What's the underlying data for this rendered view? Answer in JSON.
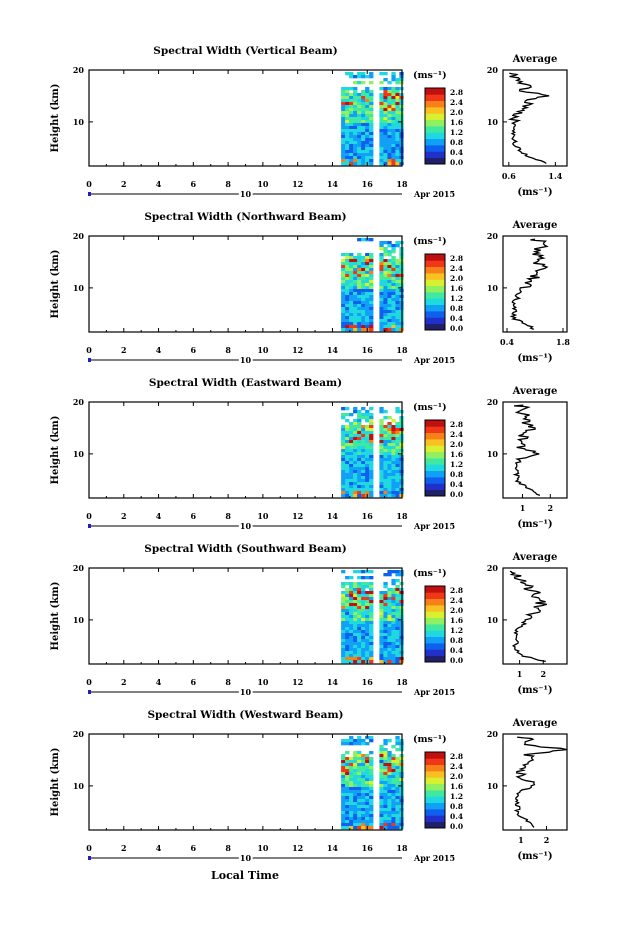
{
  "figure": {
    "xlabel": "Local Time",
    "date_label": "Apr 2015",
    "day_label": "10",
    "colorbar_unit": "(ms⁻¹)",
    "avg_title": "Average",
    "avg_unit": "(ms⁻¹)"
  },
  "chart_data": [
    {
      "type": "heatmap",
      "title": "Spectral Width (Vertical Beam)",
      "xlabel": "Local Time",
      "ylabel": "Height (km)",
      "xlim": [
        0,
        18
      ],
      "ylim": [
        1.5,
        20
      ],
      "xticks": [
        "0",
        "2",
        "4",
        "6",
        "8",
        "10",
        "12",
        "14",
        "16",
        "18"
      ],
      "yticks": [
        "10",
        "20"
      ],
      "colorbar_ticks": [
        "0.0",
        "0.4",
        "0.8",
        "1.2",
        "1.6",
        "2.0",
        "2.4",
        "2.8"
      ],
      "data_blocks": [
        [
          14.5,
          16.3
        ],
        [
          16.7,
          18.0
        ]
      ],
      "avg_profile": {
        "xlim": [
          0.5,
          1.6
        ],
        "xticks": [
          "0.6",
          "1.4"
        ],
        "height": [
          2,
          3,
          4,
          5,
          6,
          7,
          8,
          9,
          10,
          11,
          12,
          13,
          14,
          15,
          16,
          17,
          18,
          19,
          19.5
        ],
        "value": [
          1.25,
          1.0,
          0.85,
          0.75,
          0.7,
          0.68,
          0.66,
          0.72,
          0.7,
          0.65,
          0.82,
          0.9,
          0.95,
          1.2,
          0.85,
          0.9,
          0.75,
          0.7,
          0.6
        ]
      }
    },
    {
      "type": "heatmap",
      "title": "Spectral Width (Northward Beam)",
      "xlabel": "Local Time",
      "ylabel": "Height (km)",
      "xlim": [
        0,
        18
      ],
      "ylim": [
        1.5,
        20
      ],
      "xticks": [
        "0",
        "2",
        "4",
        "6",
        "8",
        "10",
        "12",
        "14",
        "16",
        "18"
      ],
      "yticks": [
        "10",
        "20"
      ],
      "colorbar_ticks": [
        "0.0",
        "0.4",
        "0.8",
        "1.2",
        "1.6",
        "2.0",
        "2.4",
        "2.8"
      ],
      "data_blocks": [
        [
          14.5,
          16.3
        ],
        [
          16.7,
          18.0
        ]
      ],
      "avg_profile": {
        "xlim": [
          0.3,
          1.9
        ],
        "xticks": [
          "0.4",
          "1.8"
        ],
        "height": [
          2,
          3,
          4,
          5,
          6,
          7,
          8,
          9,
          10,
          11,
          12,
          13,
          14,
          15,
          16,
          17,
          18,
          19,
          19.5
        ],
        "value": [
          1.1,
          0.9,
          0.6,
          0.55,
          0.6,
          0.55,
          0.65,
          0.7,
          0.8,
          1.0,
          1.1,
          1.2,
          1.3,
          1.1,
          1.2,
          1.0,
          1.4,
          1.3,
          0.9
        ]
      }
    },
    {
      "type": "heatmap",
      "title": "Spectral Width (Eastward Beam)",
      "xlabel": "Local Time",
      "ylabel": "Height (km)",
      "xlim": [
        0,
        18
      ],
      "ylim": [
        1.5,
        20
      ],
      "xticks": [
        "0",
        "2",
        "4",
        "6",
        "8",
        "10",
        "12",
        "14",
        "16",
        "18"
      ],
      "yticks": [
        "10",
        "20"
      ],
      "colorbar_ticks": [
        "0.0",
        "0.4",
        "0.8",
        "1.2",
        "1.6",
        "2.0",
        "2.4",
        "2.8"
      ],
      "data_blocks": [
        [
          14.5,
          16.3
        ],
        [
          16.7,
          18.0
        ]
      ],
      "avg_profile": {
        "xlim": [
          0.3,
          2.6
        ],
        "xticks": [
          "1",
          "2"
        ],
        "height": [
          2,
          3,
          4,
          5,
          6,
          7,
          8,
          9,
          10,
          11,
          12,
          13,
          14,
          15,
          16,
          17,
          18,
          19,
          19.5
        ],
        "value": [
          1.6,
          1.4,
          1.0,
          0.8,
          0.8,
          0.75,
          0.8,
          0.9,
          1.6,
          1.0,
          0.9,
          1.0,
          1.1,
          1.5,
          1.0,
          1.2,
          0.9,
          1.0,
          0.8
        ]
      }
    },
    {
      "type": "heatmap",
      "title": "Spectral Width (Southward Beam)",
      "xlabel": "Local Time",
      "ylabel": "Height (km)",
      "xlim": [
        0,
        18
      ],
      "ylim": [
        1.5,
        20
      ],
      "xticks": [
        "0",
        "2",
        "4",
        "6",
        "8",
        "10",
        "12",
        "14",
        "16",
        "18"
      ],
      "yticks": [
        "10",
        "20"
      ],
      "colorbar_ticks": [
        "0.0",
        "0.4",
        "0.8",
        "1.2",
        "1.6",
        "2.0",
        "2.4",
        "2.8"
      ],
      "data_blocks": [
        [
          14.5,
          16.3
        ],
        [
          16.7,
          18.0
        ]
      ],
      "avg_profile": {
        "xlim": [
          0.3,
          3.0
        ],
        "xticks": [
          "1",
          "2"
        ],
        "height": [
          2,
          3,
          4,
          5,
          6,
          7,
          8,
          9,
          10,
          11,
          12,
          13,
          14,
          15,
          16,
          17,
          18,
          19,
          19.5
        ],
        "value": [
          2.0,
          1.2,
          0.9,
          0.8,
          0.85,
          0.8,
          0.9,
          1.1,
          1.3,
          1.5,
          1.7,
          1.9,
          1.8,
          1.7,
          1.4,
          1.2,
          1.0,
          0.9,
          0.7
        ]
      }
    },
    {
      "type": "heatmap",
      "title": "Spectral Width (Westward Beam)",
      "xlabel": "Local Time",
      "ylabel": "Height (km)",
      "xlim": [
        0,
        18
      ],
      "ylim": [
        1.5,
        20
      ],
      "xticks": [
        "0",
        "2",
        "4",
        "6",
        "8",
        "10",
        "12",
        "14",
        "16",
        "18"
      ],
      "yticks": [
        "10",
        "20"
      ],
      "colorbar_ticks": [
        "0.0",
        "0.4",
        "0.8",
        "1.2",
        "1.6",
        "2.0",
        "2.4",
        "2.8"
      ],
      "data_blocks": [
        [
          14.5,
          16.3
        ],
        [
          16.7,
          18.0
        ]
      ],
      "avg_profile": {
        "xlim": [
          0.3,
          2.8
        ],
        "xticks": [
          "1",
          "2"
        ],
        "height": [
          2,
          3,
          4,
          5,
          6,
          7,
          8,
          9,
          10,
          11,
          12,
          13,
          14,
          15,
          16,
          17,
          18,
          19,
          19.5
        ],
        "value": [
          1.6,
          1.3,
          1.0,
          0.9,
          0.85,
          0.8,
          0.9,
          1.0,
          1.5,
          1.2,
          1.0,
          1.1,
          1.2,
          1.5,
          1.2,
          2.8,
          1.1,
          1.6,
          0.8
        ]
      }
    }
  ]
}
